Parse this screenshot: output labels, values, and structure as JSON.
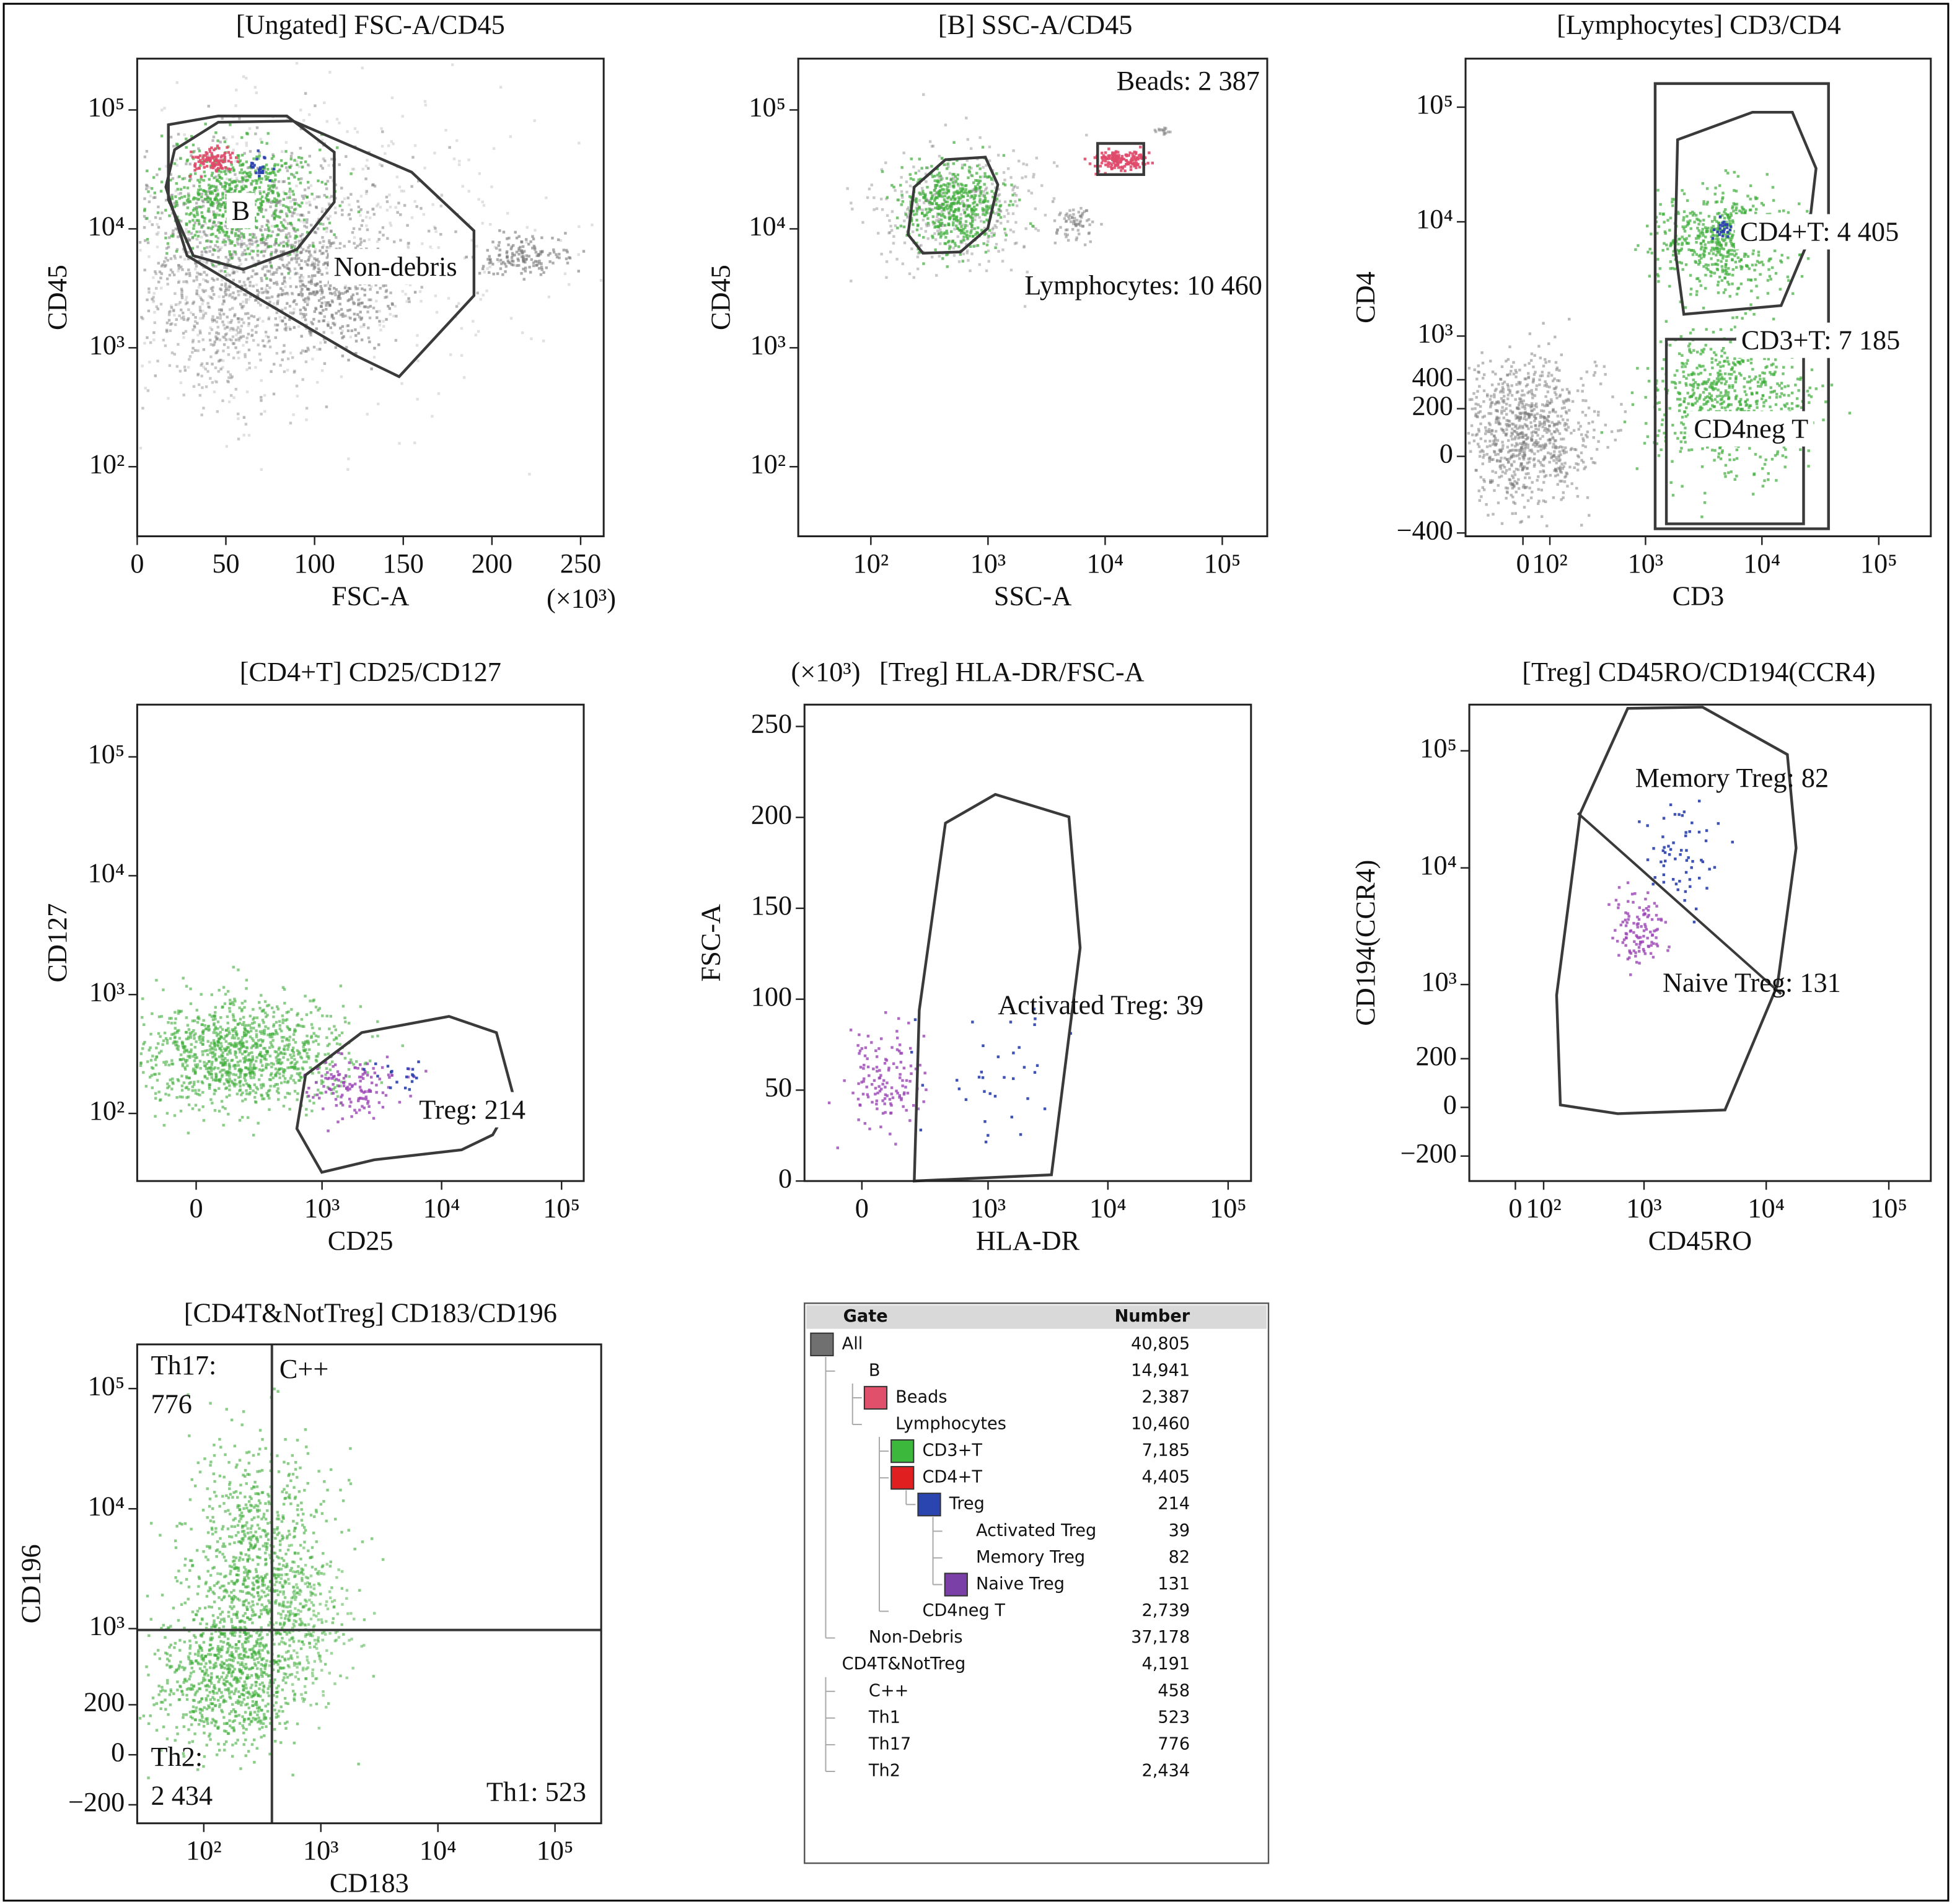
{
  "chart_data": [
    {
      "type": "scatter",
      "title": "[Ungated] FSC-A/CD45",
      "x_label": "FSC-A",
      "y_label": "CD45",
      "x_multiplier": "(×10³)",
      "xscale": "linear",
      "yscale": "log",
      "xlim": [
        0,
        263
      ],
      "ylim": [
        26,
        270000
      ],
      "xticks": [
        0,
        50,
        100,
        150,
        200,
        250
      ],
      "yticks": [
        {
          "value": 100,
          "label": "10²"
        },
        {
          "value": 1000,
          "label": "10³"
        },
        {
          "value": 10000,
          "label": "10⁴"
        },
        {
          "value": 100000,
          "label": "10⁵"
        }
      ],
      "gate_labels": [
        "B",
        "Non-debris"
      ]
    },
    {
      "type": "scatter",
      "title": "[B] SSC-A/CD45",
      "x_label": "SSC-A",
      "y_label": "CD45",
      "xscale": "log",
      "yscale": "log",
      "xlim": [
        24,
        242000
      ],
      "ylim": [
        26,
        270000
      ],
      "xticks": [
        {
          "value": 100,
          "label": "10²"
        },
        {
          "value": 1000,
          "label": "10³"
        },
        {
          "value": 10000,
          "label": "10⁴"
        },
        {
          "value": 100000,
          "label": "10⁵"
        }
      ],
      "yticks": [
        {
          "value": 100,
          "label": "10²"
        },
        {
          "value": 1000,
          "label": "10³"
        },
        {
          "value": 10000,
          "label": "10⁴"
        },
        {
          "value": 100000,
          "label": "10⁵"
        }
      ],
      "gate_labels": [
        "Beads: 2 387",
        "Lymphocytes: 10 460"
      ]
    },
    {
      "type": "scatter",
      "title": "[Lymphocytes] CD3/CD4",
      "x_label": "CD3",
      "y_label": "CD4",
      "xscale": "biexponential",
      "yscale": "biexponential",
      "xlim": [
        -250,
        279000
      ],
      "ylim": [
        -430,
        265000
      ],
      "xticks": [
        0,
        {
          "value": 100,
          "label": "10²"
        },
        {
          "value": 1000,
          "label": "10³"
        },
        {
          "value": 10000,
          "label": "10⁴"
        },
        {
          "value": 100000,
          "label": "10⁵"
        }
      ],
      "yticks": [
        {
          "value": -400,
          "label": "−400"
        },
        0,
        200,
        400,
        {
          "value": 1000,
          "label": "10³"
        },
        {
          "value": 10000,
          "label": "10⁴"
        },
        {
          "value": 100000,
          "label": "10⁵"
        }
      ],
      "gate_labels": [
        "CD4+T: 4 405",
        "CD3+T: 7 185",
        "CD4neg T"
      ]
    },
    {
      "type": "scatter",
      "title": "[CD4+T] CD25/CD127",
      "x_label": "CD25",
      "y_label": "CD127",
      "xscale": "biexponential",
      "yscale": "log",
      "xlim": [
        -250,
        153000
      ],
      "ylim": [
        27,
        275000
      ],
      "xticks": [
        0,
        {
          "value": 1000,
          "label": "10³"
        },
        {
          "value": 10000,
          "label": "10⁴"
        },
        {
          "value": 100000,
          "label": "10⁵"
        }
      ],
      "yticks": [
        {
          "value": 100,
          "label": "10²"
        },
        {
          "value": 1000,
          "label": "10³"
        },
        {
          "value": 10000,
          "label": "10⁴"
        },
        {
          "value": 100000,
          "label": "10⁵"
        }
      ],
      "gate_labels": [
        "Treg: 214"
      ]
    },
    {
      "type": "scatter",
      "title": "[Treg] HLA-DR/FSC-A",
      "x_label": "HLA-DR",
      "y_label": "FSC-A",
      "y_multiplier": "(×10³)",
      "xscale": "biexponential",
      "yscale": "linear",
      "xlim": [
        -240,
        155000
      ],
      "ylim": [
        0,
        262
      ],
      "xticks": [
        0,
        {
          "value": 1000,
          "label": "10³"
        },
        {
          "value": 10000,
          "label": "10⁴"
        },
        {
          "value": 100000,
          "label": "10⁵"
        }
      ],
      "yticks": [
        0,
        50,
        100,
        150,
        200,
        250
      ],
      "gate_labels": [
        "Activated Treg: 39"
      ]
    },
    {
      "type": "scatter",
      "title": "[Treg] CD45RO/CD194(CCR4)",
      "x_label": "CD45RO",
      "y_label": "CD194(CCR4)",
      "xscale": "biexponential",
      "yscale": "biexponential",
      "xlim": [
        -176,
        220000
      ],
      "ylim": [
        -362,
        248000
      ],
      "xticks": [
        0,
        {
          "value": 100,
          "label": "10²"
        },
        {
          "value": 1000,
          "label": "10³"
        },
        {
          "value": 10000,
          "label": "10⁴"
        },
        {
          "value": 100000,
          "label": "10⁵"
        }
      ],
      "yticks": [
        {
          "value": -200,
          "label": "−200"
        },
        0,
        200,
        {
          "value": 1000,
          "label": "10³"
        },
        {
          "value": 10000,
          "label": "10⁴"
        },
        {
          "value": 100000,
          "label": "10⁵"
        }
      ],
      "gate_labels": [
        "Memory Treg: 82",
        "Naive Treg: 131"
      ]
    },
    {
      "type": "scatter",
      "title": "[CD4T&NotTreg] CD183/CD196",
      "x_label": "CD183",
      "y_label": "CD196",
      "xscale": "log",
      "yscale": "biexponential",
      "xlim": [
        27,
        248000
      ],
      "ylim": [
        -310,
        233000
      ],
      "xticks": [
        {
          "value": 100,
          "label": "10²"
        },
        {
          "value": 1000,
          "label": "10³"
        },
        {
          "value": 10000,
          "label": "10⁴"
        },
        {
          "value": 100000,
          "label": "10⁵"
        }
      ],
      "yticks": [
        {
          "value": -200,
          "label": "−200"
        },
        0,
        200,
        {
          "value": 1000,
          "label": "10³"
        },
        {
          "value": 10000,
          "label": "10⁴"
        },
        {
          "value": 100000,
          "label": "10⁵"
        }
      ],
      "gate_labels": [
        [
          "Th17:",
          "776"
        ],
        "C++",
        [
          "Th2:",
          "2 434"
        ],
        "Th1: 523"
      ]
    }
  ],
  "gating_table": {
    "headers": [
      "Gate",
      "Number"
    ],
    "tree": [
      {
        "name": "All",
        "number": "40,805",
        "color": "#707070",
        "children": [
          {
            "name": "B",
            "number": "14,941",
            "children": [
              {
                "name": "Beads",
                "number": "2,387",
                "color": "#e0506a"
              },
              {
                "name": "Lymphocytes",
                "number": "10,460",
                "children": [
                  {
                    "name": "CD3+T",
                    "number": "7,185",
                    "color": "#3cb83c"
                  },
                  {
                    "name": "CD4+T",
                    "number": "4,405",
                    "color": "#e02020",
                    "children": [
                      {
                        "name": "Treg",
                        "number": "214",
                        "color": "#2a44b0",
                        "children": [
                          {
                            "name": "Activated Treg",
                            "number": "39"
                          },
                          {
                            "name": "Memory Treg",
                            "number": "82"
                          },
                          {
                            "name": "Naive Treg",
                            "number": "131",
                            "color": "#7b3fa8"
                          }
                        ]
                      }
                    ]
                  },
                  {
                    "name": "CD4neg T",
                    "number": "2,739"
                  }
                ]
              }
            ]
          },
          {
            "name": "Non-Debris",
            "number": "37,178"
          }
        ]
      },
      {
        "name": "CD4T&NotTreg",
        "number": "4,191",
        "children": [
          {
            "name": "C++",
            "number": "458"
          },
          {
            "name": "Th1",
            "number": "523"
          },
          {
            "name": "Th17",
            "number": "776"
          },
          {
            "name": "Th2",
            "number": "2,434"
          }
        ]
      }
    ]
  }
}
